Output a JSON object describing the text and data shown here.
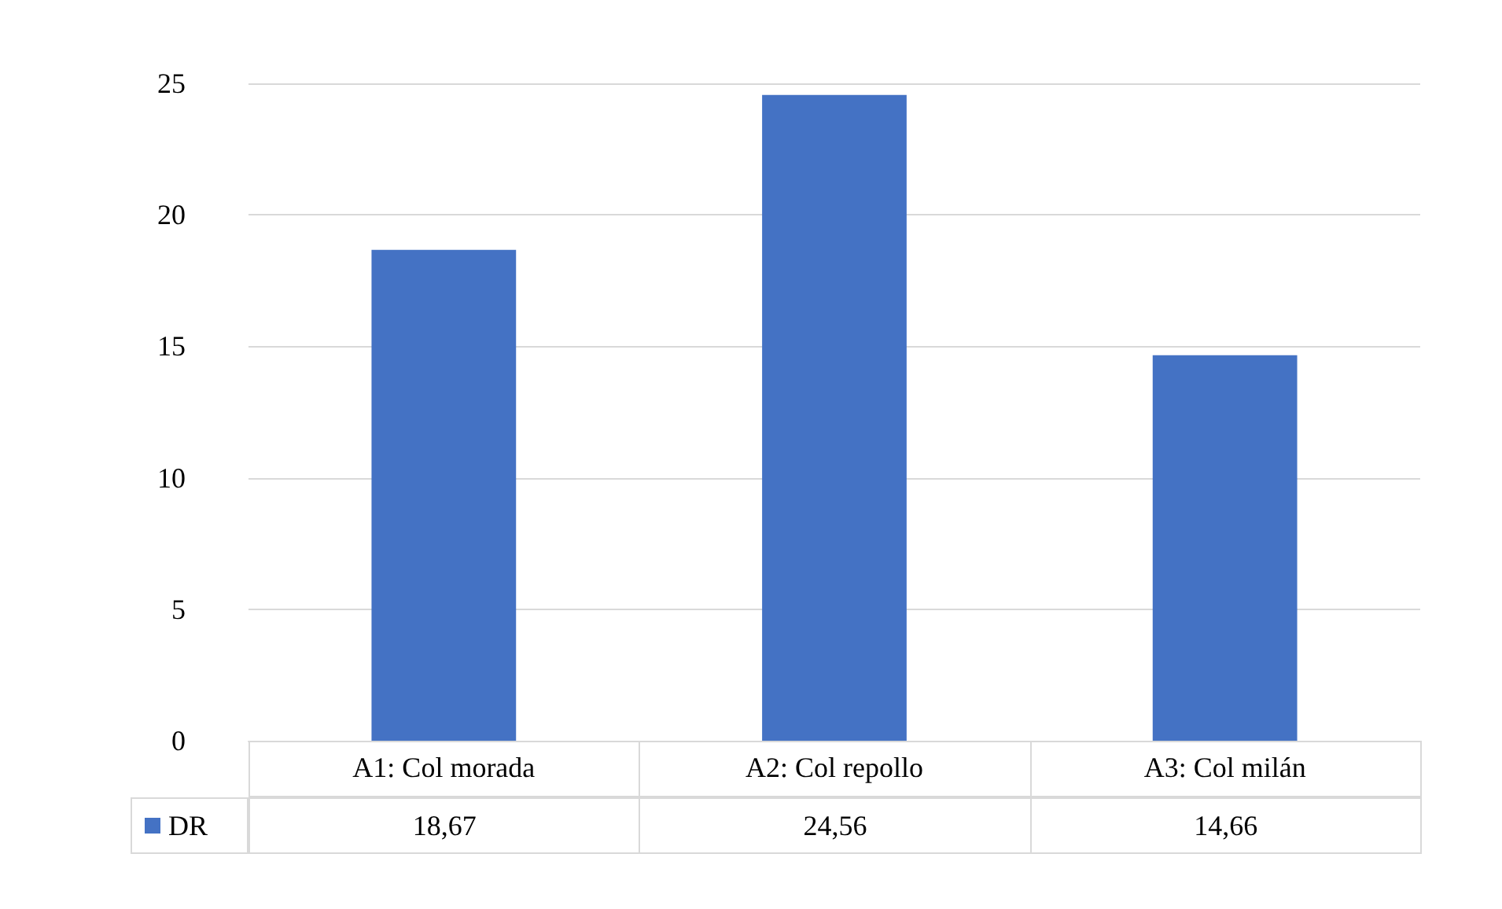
{
  "chart_data": {
    "type": "bar",
    "categories": [
      "A1: Col morada",
      "A2: Col repollo",
      "A3: Col milán"
    ],
    "series": [
      {
        "name": "DR",
        "color": "#4472c4",
        "values": [
          18.67,
          24.56,
          14.66
        ],
        "value_labels": [
          "18,67",
          "24,56",
          "14,66"
        ]
      }
    ],
    "ylim": [
      0,
      25
    ],
    "yticks": [
      0,
      5,
      10,
      15,
      20,
      25
    ],
    "grid": "y",
    "legend": "bottom"
  }
}
